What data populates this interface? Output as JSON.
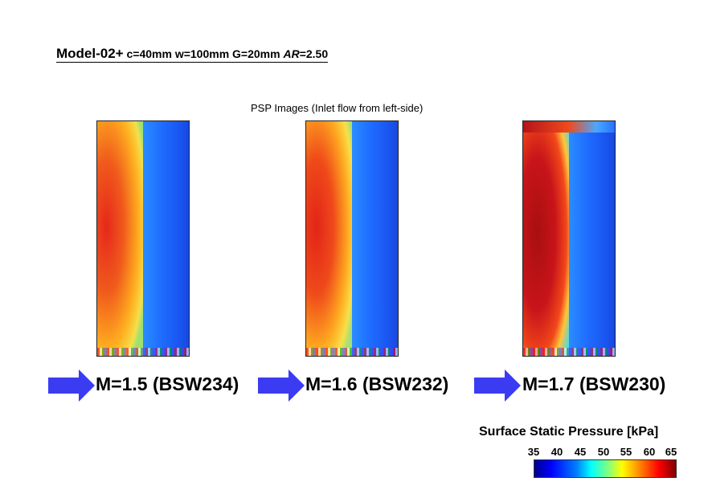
{
  "header": {
    "model": "Model-02+",
    "params": "c=40mm w=100mm G=20mm",
    "ar_label": "AR",
    "ar_value": "=2.50"
  },
  "subtitle": "PSP Images (Inlet flow from left-side)",
  "panels": [
    {
      "label": "M=1.5 (BSW234)"
    },
    {
      "label": "M=1.6 (BSW232)"
    },
    {
      "label": "M=1.7 (BSW230)"
    }
  ],
  "colorbar": {
    "title": "Surface Static Pressure [kPa]",
    "ticks": [
      "35",
      "40",
      "45",
      "50",
      "55",
      "60",
      "65"
    ]
  },
  "colors": {
    "arrow": "#3b3bf2"
  }
}
